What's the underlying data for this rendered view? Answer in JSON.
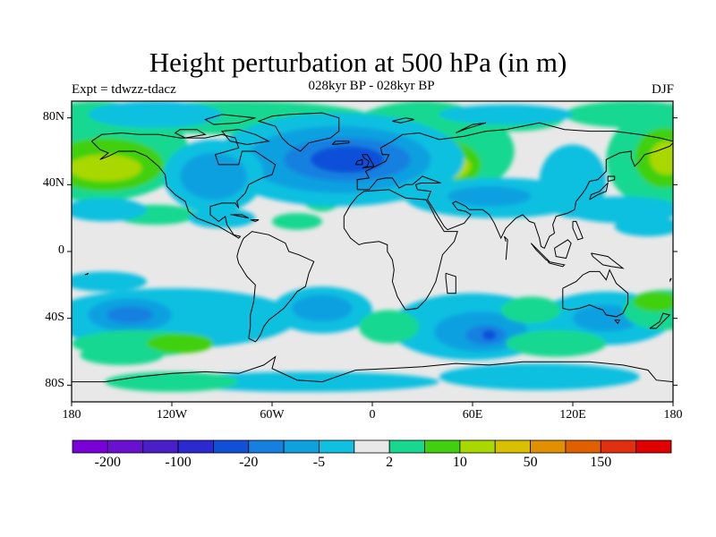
{
  "title": "Height perturbation at 500 hPa (in m)",
  "subtitle": "028kyr BP - 028kyr BP",
  "expt": "Expt = tdwzz-tdacz",
  "season": "DJF",
  "chart_data": {
    "type": "heatmap",
    "projection": "cylindrical-equidistant",
    "lon_range": [
      -180,
      180
    ],
    "lat_range": [
      -90,
      90
    ],
    "lat_ticks": [
      "80N",
      "40N",
      "0",
      "40S",
      "80S"
    ],
    "lon_ticks": [
      "180",
      "120W",
      "60W",
      "0",
      "60E",
      "120E",
      "180"
    ],
    "contour_levels": [
      -200,
      -150,
      -100,
      -50,
      -20,
      -10,
      -5,
      -2,
      2,
      5,
      10,
      20,
      50,
      100,
      150,
      200
    ],
    "colorbar_labels": [
      "-200",
      "-100",
      "-20",
      "-5",
      "2",
      "10",
      "50",
      "150"
    ],
    "colors": [
      "#7a00d8",
      "#6a10d0",
      "#4a1ec8",
      "#2a2ad0",
      "#1050d8",
      "#1580e0",
      "#10a0e0",
      "#10c0e0",
      "#e8e8e8",
      "#18d890",
      "#40d010",
      "#a8d800",
      "#d8c000",
      "#e09000",
      "#e06000",
      "#e03010",
      "#e00000"
    ],
    "background_color": "#e8e8e8"
  }
}
